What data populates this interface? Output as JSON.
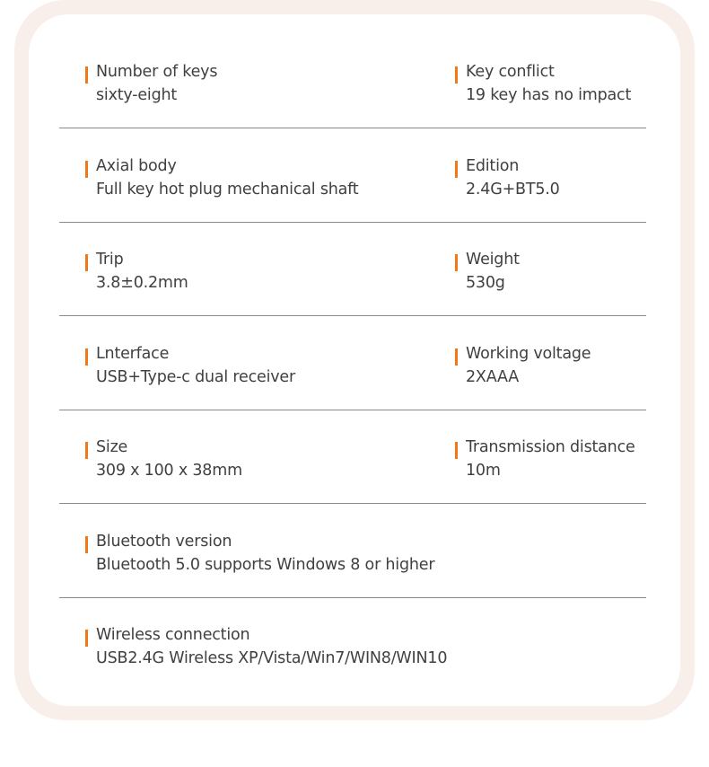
{
  "accent": "#f07818",
  "rows": [
    [
      {
        "label": "Number of keys",
        "value": "sixty-eight"
      },
      {
        "label": "Key conflict",
        "value": "19 key has no impact"
      }
    ],
    [
      {
        "label": "Axial body",
        "value": "Full key hot plug mechanical shaft"
      },
      {
        "label": "Edition",
        "value": "2.4G+BT5.0"
      }
    ],
    [
      {
        "label": "Trip",
        "value": "3.8±0.2mm"
      },
      {
        "label": "Weight",
        "value": "530g"
      }
    ],
    [
      {
        "label": "Lnterface",
        "value": "USB+Type-c dual receiver"
      },
      {
        "label": "Working voltage",
        "value": "2XAAA"
      }
    ],
    [
      {
        "label": "Size",
        "value": "309 x 100 x 38mm"
      },
      {
        "label": "Transmission distance",
        "value": "10m"
      }
    ],
    [
      {
        "label": "Bluetooth version",
        "value": "Bluetooth 5.0 supports Windows 8 or higher"
      }
    ],
    [
      {
        "label": "Wireless connection",
        "value": "USB2.4G Wireless XP/Vista/Win7/WIN8/WIN10"
      }
    ]
  ]
}
